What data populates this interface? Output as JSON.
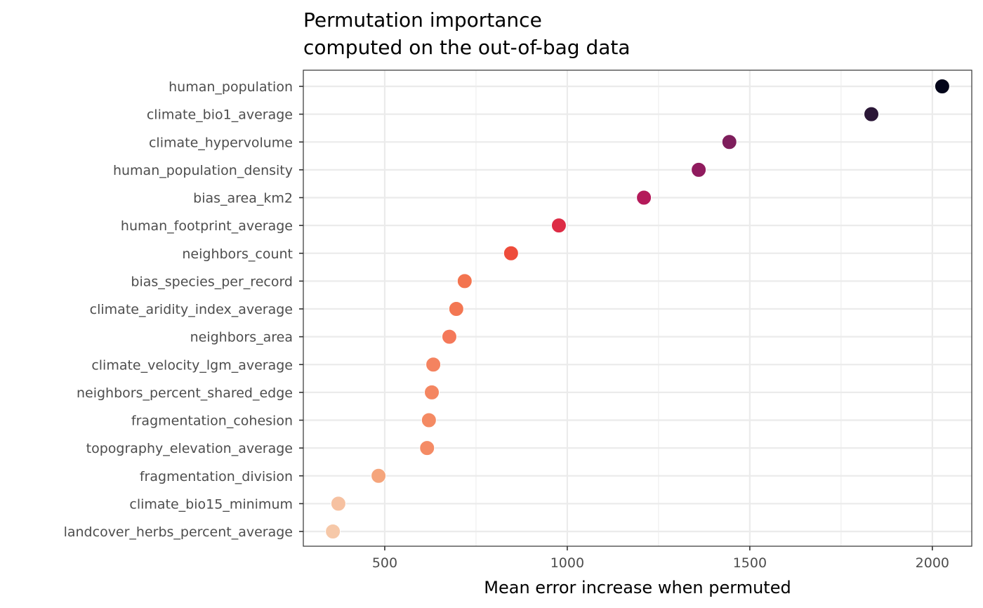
{
  "chart_data": {
    "type": "scatter",
    "title": "Permutation importance",
    "subtitle": "computed on the out-of-bag data",
    "xlabel": "Mean error increase when permuted",
    "ylabel": "",
    "xlim": [
      277,
      2108
    ],
    "x_ticks": [
      500,
      1000,
      1500,
      2000
    ],
    "x_tick_labels": [
      "500",
      "1000",
      "1500",
      "2000"
    ],
    "grid": true,
    "legend": "none",
    "categories": [
      "human_population",
      "climate_bio1_average",
      "climate_hypervolume",
      "human_population_density",
      "bias_area_km2",
      "human_footprint_average",
      "neighbors_count",
      "bias_species_per_record",
      "climate_aridity_index_average",
      "neighbors_area",
      "climate_velocity_lgm_average",
      "neighbors_percent_shared_edge",
      "fragmentation_cohesion",
      "topography_elevation_average",
      "fragmentation_division",
      "climate_bio15_minimum",
      "landcover_herbs_percent_average"
    ],
    "values": [
      2027,
      1833,
      1444,
      1360,
      1210,
      977,
      846,
      719,
      696,
      677,
      633,
      629,
      621,
      616,
      483,
      373,
      358
    ],
    "point_colors": [
      "#03051a",
      "#2b1737",
      "#7e1e5c",
      "#901b5e",
      "#b41a5a",
      "#dd2c45",
      "#ee4c3b",
      "#f3744f",
      "#f37753",
      "#f4795a",
      "#f48360",
      "#f48661",
      "#f48a63",
      "#f48b65",
      "#f5a57c",
      "#f6c1a1",
      "#f6c8a8"
    ]
  }
}
